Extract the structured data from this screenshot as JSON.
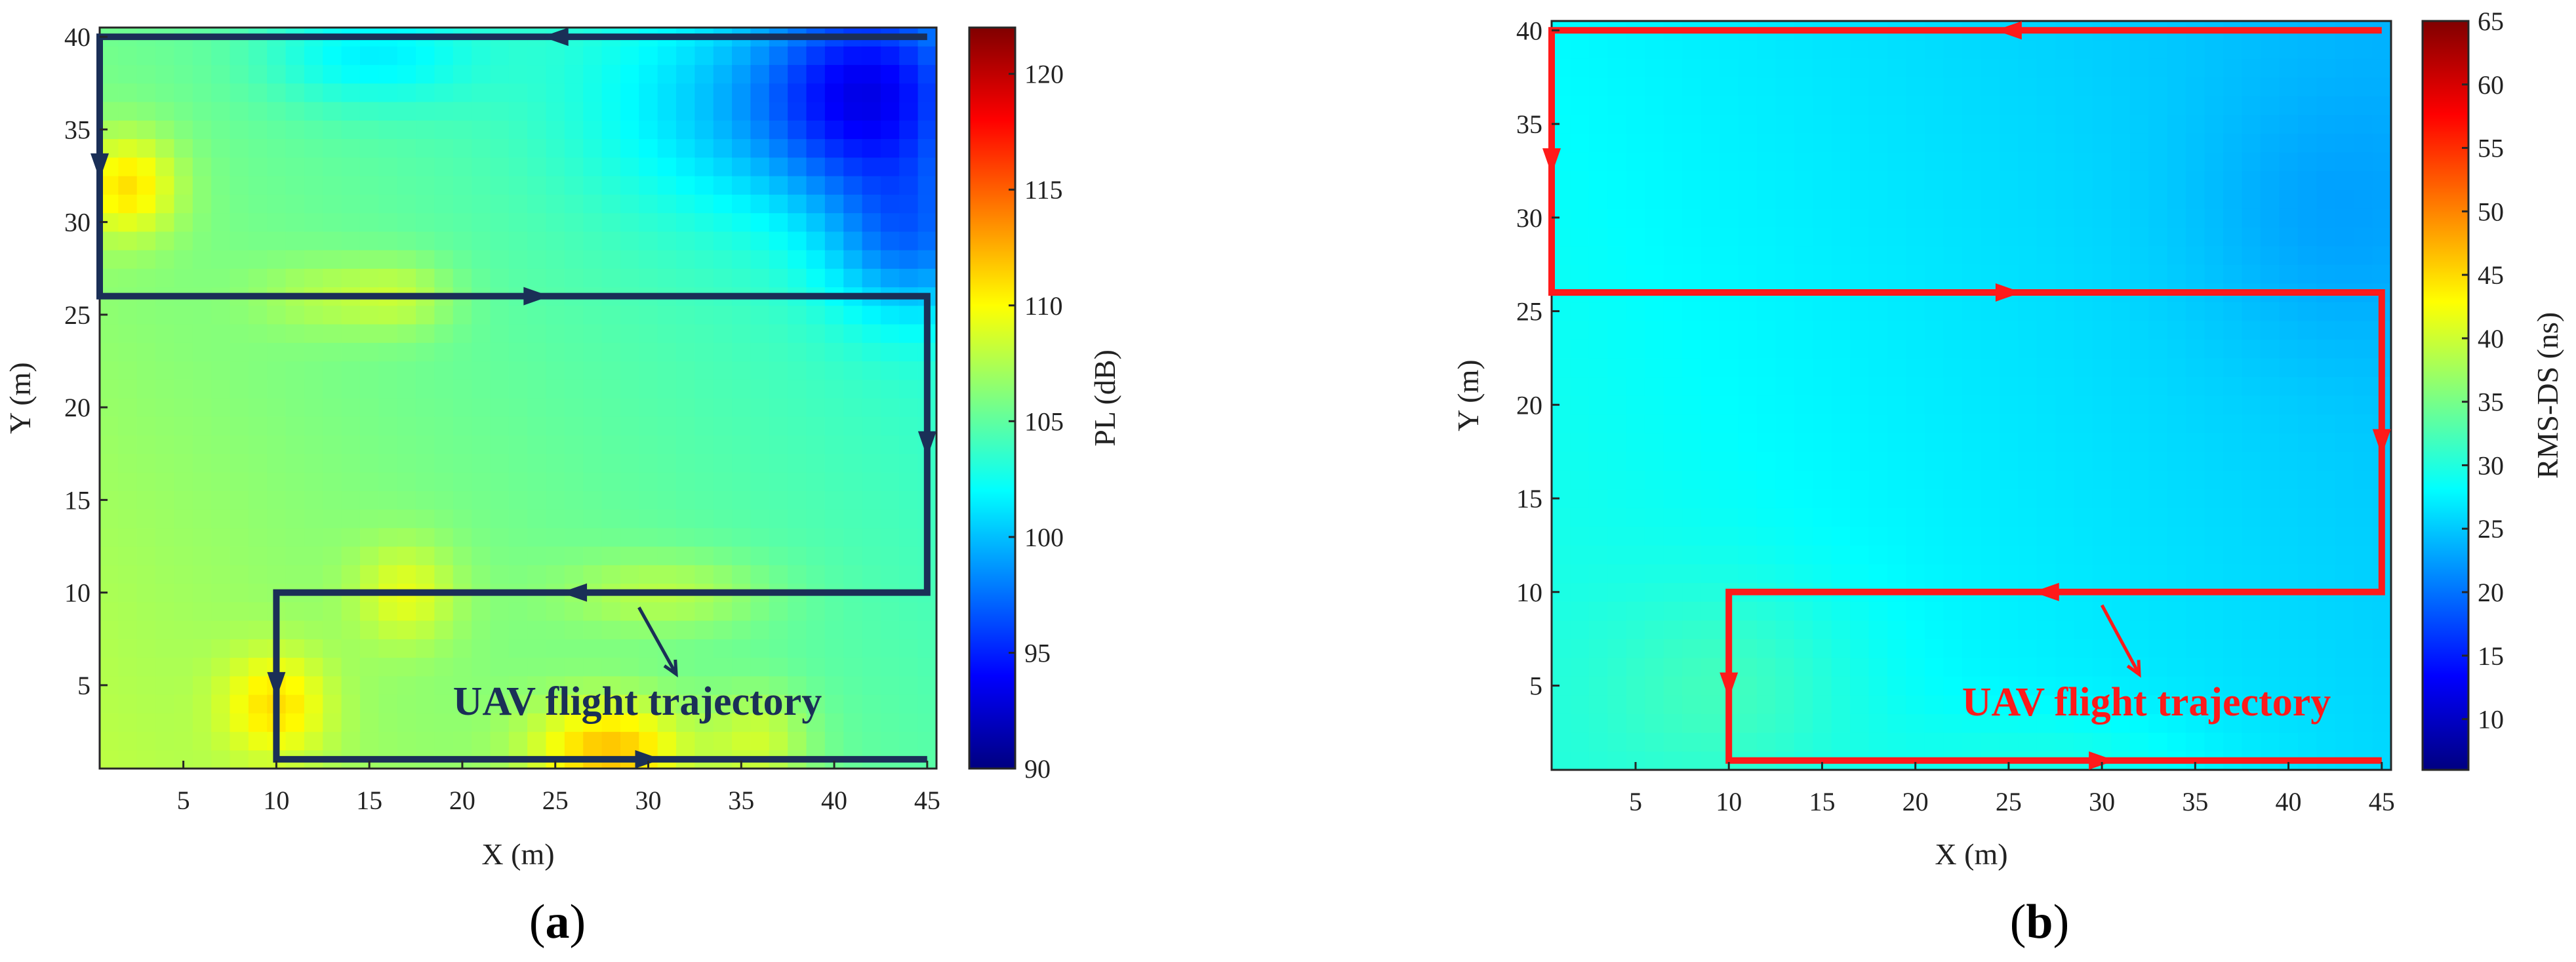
{
  "chart_data": [
    {
      "type": "heatmap",
      "panel_label": "(a)",
      "panel_letter": "a",
      "xlabel": "X (m)",
      "ylabel": "Y (m)",
      "xlim": [
        0.5,
        45.5
      ],
      "ylim": [
        0.5,
        40.5
      ],
      "xticks": [
        5,
        10,
        15,
        20,
        25,
        30,
        35,
        40,
        45
      ],
      "yticks": [
        5,
        10,
        15,
        20,
        25,
        30,
        35,
        40
      ],
      "colorbar": {
        "label": "PL (dB)",
        "range": [
          90,
          122
        ],
        "ticks": [
          90,
          95,
          100,
          105,
          110,
          115,
          120
        ],
        "colormap": "jet"
      },
      "field": {
        "base": 108,
        "x_gradient": -0.07,
        "y_gradient": -0.06,
        "features": [
          {
            "x": 42,
            "y": 37,
            "sx": 4,
            "sy": 4,
            "amp": -8
          },
          {
            "x": 44,
            "y": 29,
            "sx": 3,
            "sy": 3,
            "amp": -5
          },
          {
            "x": 35,
            "y": 36,
            "sx": 6,
            "sy": 4,
            "amp": -3
          },
          {
            "x": 15,
            "y": 39,
            "sx": 4,
            "sy": 2,
            "amp": -3
          },
          {
            "x": 2,
            "y": 32,
            "sx": 2,
            "sy": 2,
            "amp": 5
          },
          {
            "x": 28,
            "y": 1.5,
            "sx": 3,
            "sy": 2,
            "amp": 6
          },
          {
            "x": 10,
            "y": 4,
            "sx": 2,
            "sy": 2,
            "amp": 4
          },
          {
            "x": 17,
            "y": 10,
            "sx": 2,
            "sy": 2,
            "amp": 3
          },
          {
            "x": 36,
            "y": 2,
            "sx": 2,
            "sy": 2,
            "amp": 3
          },
          {
            "x": 31,
            "y": 10,
            "sx": 4,
            "sy": 1.5,
            "amp": 2.5
          },
          {
            "x": 13,
            "y": 26,
            "sx": 3,
            "sy": 1.5,
            "amp": 2
          },
          {
            "x": 17,
            "y": 26,
            "sx": 2,
            "sy": 1.5,
            "amp": 2
          }
        ]
      },
      "trajectory": {
        "label": "UAV flight trajectory",
        "color": "#1a2f57",
        "points": [
          [
            45,
            40
          ],
          [
            0.5,
            40
          ],
          [
            0.5,
            26
          ],
          [
            45,
            26
          ],
          [
            45,
            10
          ],
          [
            10,
            10
          ],
          [
            10,
            1
          ],
          [
            45,
            1
          ]
        ],
        "arrows": [
          [
            25,
            40,
            "left"
          ],
          [
            0.5,
            33,
            "down"
          ],
          [
            24,
            26,
            "right"
          ],
          [
            45,
            18,
            "down"
          ],
          [
            26,
            10,
            "left"
          ],
          [
            10,
            5,
            "down"
          ],
          [
            30,
            1,
            "right"
          ]
        ],
        "annotation": {
          "from": [
            29.5,
            9.2
          ],
          "to": [
            31.5,
            5.6
          ],
          "text_x": 19.5,
          "text_y": 3.4
        }
      }
    },
    {
      "type": "heatmap",
      "panel_label": "(b)",
      "panel_letter": "b",
      "xlabel": "X (m)",
      "ylabel": "Y (m)",
      "xlim": [
        0.5,
        45.5
      ],
      "ylim": [
        0.5,
        40.5
      ],
      "xticks": [
        5,
        10,
        15,
        20,
        25,
        30,
        35,
        40,
        45
      ],
      "yticks": [
        5,
        10,
        15,
        20,
        25,
        30,
        35,
        40
      ],
      "colorbar": {
        "label": "RMS-DS (ns)",
        "range": [
          6,
          65
        ],
        "ticks": [
          10,
          15,
          20,
          25,
          30,
          35,
          40,
          45,
          50,
          55,
          60,
          65
        ],
        "colormap": "jet"
      },
      "field": {
        "base": 30,
        "x_gradient": -0.09,
        "y_gradient": -0.05,
        "features": [
          {
            "x": 10,
            "y": 5,
            "sx": 5,
            "sy": 4,
            "amp": 3
          },
          {
            "x": 28,
            "y": 1,
            "sx": 6,
            "sy": 2,
            "amp": 2
          },
          {
            "x": 42,
            "y": 30,
            "sx": 5,
            "sy": 5,
            "amp": -2
          }
        ]
      },
      "trajectory": {
        "label": "UAV flight trajectory",
        "color": "#ff1a1a",
        "points": [
          [
            45,
            40
          ],
          [
            0.5,
            40
          ],
          [
            0.5,
            26
          ],
          [
            45,
            26
          ],
          [
            45,
            10
          ],
          [
            10,
            10
          ],
          [
            10,
            1
          ],
          [
            45,
            1
          ]
        ],
        "arrows": [
          [
            25,
            40,
            "left"
          ],
          [
            0.5,
            33,
            "down"
          ],
          [
            25,
            26,
            "right"
          ],
          [
            45,
            18,
            "down"
          ],
          [
            27,
            10,
            "left"
          ],
          [
            10,
            5,
            "down"
          ],
          [
            30,
            1,
            "right"
          ]
        ],
        "annotation": {
          "from": [
            30,
            9.3
          ],
          "to": [
            32,
            5.6
          ],
          "text_x": 22.5,
          "text_y": 3.4
        }
      }
    }
  ]
}
